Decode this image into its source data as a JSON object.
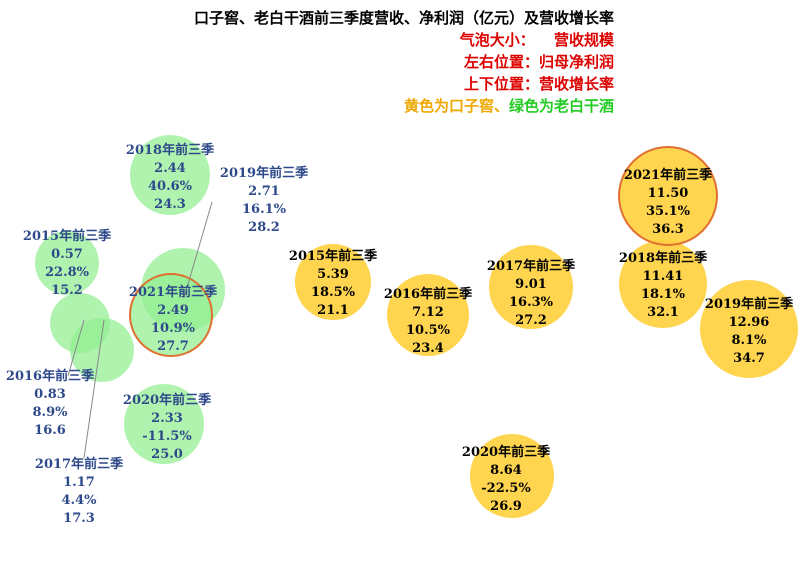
{
  "chart_data": {
    "type": "scatter",
    "title": "口子窖、老白干酒前三季度营收、净利润（亿元）及营收增长率",
    "legend_lines": {
      "size_label": "气泡大小：",
      "size_value": "营收规模",
      "x_note": "左右位置：归母净利润",
      "y_note": "上下位置：营收增长率",
      "color_yellow": "黄色为口子窖、",
      "color_green": "绿色为老白干酒"
    },
    "colors": {
      "kouzijiao": "#FFD040",
      "laobaigan": "#90EE90",
      "highlight_border": "#E07030",
      "green_label": "#2E4A8A",
      "yellow_label": "#000000",
      "red_text": "#DD0000",
      "green_text": "#22CC22",
      "yellow_text": "#F0A800"
    },
    "series": [
      {
        "name": "口子窖",
        "points": [
          {
            "label": "2015年前三季",
            "profit": "5.39",
            "growth": "18.5%",
            "revenue": "21.1",
            "x": 5.39,
            "y": 18.5,
            "size": 21.1
          },
          {
            "label": "2016年前三季",
            "profit": "7.12",
            "growth": "10.5%",
            "revenue": "23.4",
            "x": 7.12,
            "y": 10.5,
            "size": 23.4
          },
          {
            "label": "2017年前三季",
            "profit": "9.01",
            "growth": "16.3%",
            "revenue": "27.2",
            "x": 9.01,
            "y": 16.3,
            "size": 27.2
          },
          {
            "label": "2018年前三季",
            "profit": "11.41",
            "growth": "18.1%",
            "revenue": "32.1",
            "x": 11.41,
            "y": 18.1,
            "size": 32.1
          },
          {
            "label": "2019年前三季",
            "profit": "12.96",
            "growth": "8.1%",
            "revenue": "34.7",
            "x": 12.96,
            "y": 8.1,
            "size": 34.7
          },
          {
            "label": "2020年前三季",
            "profit": "8.64",
            "growth": "-22.5%",
            "revenue": "26.9",
            "x": 8.64,
            "y": -22.5,
            "size": 26.9
          },
          {
            "label": "2021年前三季",
            "profit": "11.50",
            "growth": "35.1%",
            "revenue": "36.3",
            "x": 11.5,
            "y": 35.1,
            "size": 36.3,
            "highlight": true
          }
        ]
      },
      {
        "name": "老白干酒",
        "points": [
          {
            "label": "2015年前三季",
            "profit": "0.57",
            "growth": "22.8%",
            "revenue": "15.2",
            "x": 0.57,
            "y": 22.8,
            "size": 15.2
          },
          {
            "label": "2016年前三季",
            "profit": "0.83",
            "growth": "8.9%",
            "revenue": "16.6",
            "x": 0.83,
            "y": 8.9,
            "size": 16.6
          },
          {
            "label": "2017年前三季",
            "profit": "1.17",
            "growth": "4.4%",
            "revenue": "17.3",
            "x": 1.17,
            "y": 4.4,
            "size": 17.3
          },
          {
            "label": "2018年前三季",
            "profit": "2.44",
            "growth": "40.6%",
            "revenue": "24.3",
            "x": 2.44,
            "y": 40.6,
            "size": 24.3
          },
          {
            "label": "2019年前三季",
            "profit": "2.71",
            "growth": "16.1%",
            "revenue": "28.2",
            "x": 2.71,
            "y": 16.1,
            "size": 28.2
          },
          {
            "label": "2020年前三季",
            "profit": "2.33",
            "growth": "-11.5%",
            "revenue": "25.0",
            "x": 2.33,
            "y": -11.5,
            "size": 25.0
          },
          {
            "label": "2021年前三季",
            "profit": "2.49",
            "growth": "10.9%",
            "revenue": "27.7",
            "x": 2.49,
            "y": 10.9,
            "size": 27.7,
            "highlight": true
          }
        ]
      }
    ],
    "grid": false,
    "legend": "top-right"
  }
}
